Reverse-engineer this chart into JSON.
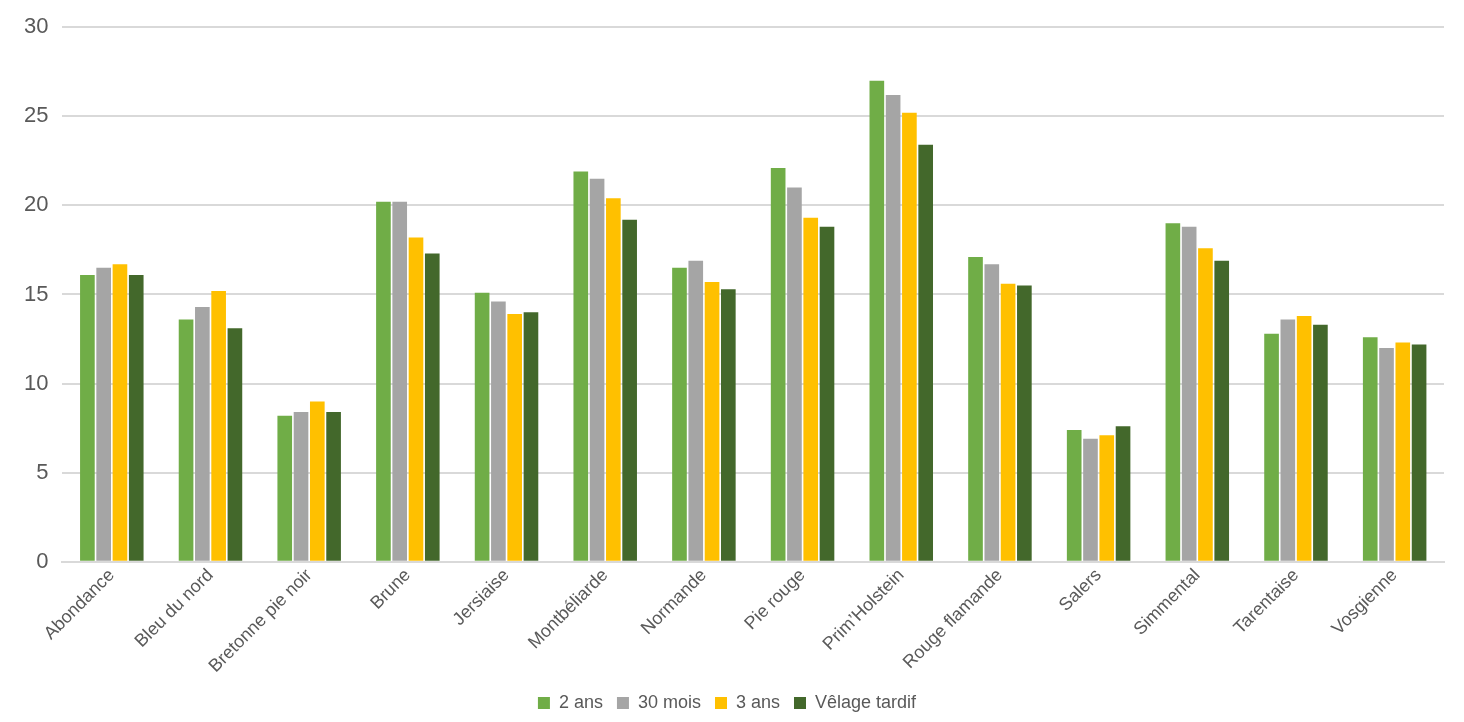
{
  "chart_data": {
    "type": "bar",
    "categories": [
      "Abondance",
      "Bleu du nord",
      "Bretonne pie noir",
      "Brune",
      "Jersiaise",
      "Montbéliarde",
      "Normande",
      "Pie rouge",
      "Prim’Holstein",
      "Rouge flamande",
      "Salers",
      "Simmental",
      "Tarentaise",
      "Vosgienne"
    ],
    "series": [
      {
        "name": "2 ans",
        "color": "#70ad47",
        "values": [
          16.1,
          13.6,
          8.2,
          20.2,
          15.1,
          21.9,
          16.5,
          22.1,
          27.0,
          17.1,
          7.4,
          19.0,
          12.8,
          12.6
        ]
      },
      {
        "name": "30 mois",
        "color": "#a5a5a5",
        "values": [
          16.5,
          14.3,
          8.4,
          20.2,
          14.6,
          21.5,
          16.9,
          21.0,
          26.2,
          16.7,
          6.9,
          18.8,
          13.6,
          12.0
        ]
      },
      {
        "name": "3 ans",
        "color": "#ffc000",
        "values": [
          16.7,
          15.2,
          9.0,
          18.2,
          13.9,
          20.4,
          15.7,
          19.3,
          25.2,
          15.6,
          7.1,
          17.6,
          13.8,
          12.3
        ]
      },
      {
        "name": "Vêlage tardif",
        "color": "#43682b",
        "values": [
          16.1,
          13.1,
          8.4,
          17.3,
          14.0,
          19.2,
          15.3,
          18.8,
          23.4,
          15.5,
          7.6,
          16.9,
          13.3,
          12.2
        ]
      }
    ],
    "ylim": [
      0,
      30
    ],
    "yticks": [
      0,
      5,
      10,
      15,
      20,
      25,
      30
    ],
    "grid": "y",
    "legend": "bottom"
  }
}
